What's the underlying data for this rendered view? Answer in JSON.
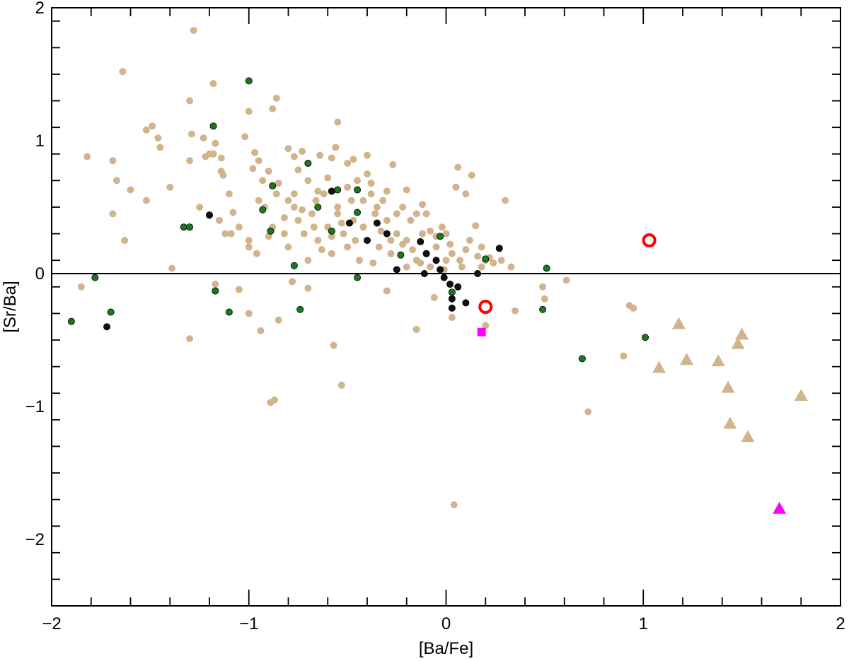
{
  "chart_data": {
    "type": "scatter",
    "title": "",
    "xlabel": "[Ba/Fe]",
    "ylabel": "[Sr/Ba]",
    "xlim": [
      -2,
      2
    ],
    "ylim": [
      -2.5,
      2
    ],
    "x_major_ticks": [
      -2,
      -1,
      0,
      1,
      2
    ],
    "y_major_ticks": [
      -2,
      -1,
      0,
      1,
      2
    ],
    "x_tick_labels": [
      "−2",
      "−1",
      "0",
      "1",
      "2"
    ],
    "y_tick_labels": [
      "−2",
      "−1",
      "0",
      "1",
      "2"
    ],
    "x_minor_step": 0.2,
    "y_minor_step": 0.2,
    "reference_lines": [
      {
        "axis": "y",
        "value": 0
      }
    ],
    "grid": false,
    "legend": "none",
    "series": [
      {
        "marker": "circle",
        "color": "#d2b48c",
        "filled": true,
        "points": [
          [
            -1.28,
            1.83
          ],
          [
            -1.64,
            1.52
          ],
          [
            -1.18,
            1.43
          ],
          [
            -1.0,
            1.22
          ],
          [
            -1.3,
            1.3
          ],
          [
            -0.86,
            1.32
          ],
          [
            -0.88,
            1.24
          ],
          [
            -0.55,
            1.14
          ],
          [
            -1.52,
            1.08
          ],
          [
            -1.49,
            1.11
          ],
          [
            -1.46,
            1.02
          ],
          [
            -1.45,
            0.95
          ],
          [
            -1.29,
            1.05
          ],
          [
            -1.23,
            1.02
          ],
          [
            -1.17,
            0.98
          ],
          [
            -1.02,
            1.03
          ],
          [
            -1.3,
            0.85
          ],
          [
            -1.18,
            0.9
          ],
          [
            -1.22,
            0.88
          ],
          [
            -1.14,
            0.87
          ],
          [
            -1.14,
            0.77
          ],
          [
            -1.13,
            0.74
          ],
          [
            -0.97,
            0.91
          ],
          [
            -0.95,
            0.85
          ],
          [
            -0.98,
            0.79
          ],
          [
            -0.9,
            0.77
          ],
          [
            -0.93,
            0.7
          ],
          [
            -0.8,
            0.94
          ],
          [
            -0.77,
            0.88
          ],
          [
            -0.73,
            0.92
          ],
          [
            -0.64,
            0.89
          ],
          [
            -0.58,
            0.87
          ],
          [
            -0.56,
            0.95
          ],
          [
            -0.5,
            0.83
          ],
          [
            -0.47,
            0.86
          ],
          [
            -0.4,
            0.89
          ],
          [
            -0.27,
            0.82
          ],
          [
            -1.82,
            0.88
          ],
          [
            -1.69,
            0.85
          ],
          [
            -1.67,
            0.7
          ],
          [
            -1.6,
            0.63
          ],
          [
            -1.52,
            0.55
          ],
          [
            -1.69,
            0.45
          ],
          [
            -1.63,
            0.25
          ],
          [
            -1.39,
            0.04
          ],
          [
            -1.08,
            0.46
          ],
          [
            -1.15,
            0.4
          ],
          [
            -1.09,
            0.3
          ],
          [
            -1.0,
            0.25
          ],
          [
            -1.0,
            0.2
          ],
          [
            -0.95,
            0.55
          ],
          [
            -0.92,
            0.5
          ],
          [
            -0.86,
            0.6
          ],
          [
            -0.82,
            0.3
          ],
          [
            -0.8,
            0.2
          ],
          [
            -0.77,
            0.5
          ],
          [
            -0.75,
            0.4
          ],
          [
            -0.72,
            0.3
          ],
          [
            -0.7,
            0.1
          ],
          [
            -0.68,
            0.45
          ],
          [
            -0.66,
            0.55
          ],
          [
            -0.65,
            0.25
          ],
          [
            -0.62,
            0.6
          ],
          [
            -0.6,
            0.35
          ],
          [
            -0.58,
            0.15
          ],
          [
            -0.55,
            0.45
          ],
          [
            -0.52,
            0.3
          ],
          [
            -0.5,
            0.2
          ],
          [
            -0.48,
            0.55
          ],
          [
            -0.46,
            0.25
          ],
          [
            -0.44,
            0.1
          ],
          [
            -0.42,
            0.35
          ],
          [
            -0.4,
            0.75
          ],
          [
            -0.38,
            0.6
          ],
          [
            -0.36,
            0.45
          ],
          [
            -0.34,
            0.2
          ],
          [
            -0.32,
            0.55
          ],
          [
            -0.3,
            0.4
          ],
          [
            -0.28,
            0.15
          ],
          [
            -0.25,
            0.3
          ],
          [
            -0.22,
            0.5
          ],
          [
            -0.2,
            0.25
          ],
          [
            -0.18,
            0.4
          ],
          [
            -0.15,
            0.1
          ],
          [
            -0.12,
            0.3
          ],
          [
            -0.1,
            0.45
          ],
          [
            -0.08,
            0.05
          ],
          [
            -0.05,
            0.2
          ],
          [
            -0.02,
            0.35
          ],
          [
            0.0,
            0.1
          ],
          [
            0.03,
            0.15
          ],
          [
            0.05,
            0.65
          ],
          [
            0.06,
            0.8
          ],
          [
            0.08,
            0.05
          ],
          [
            0.1,
            0.6
          ],
          [
            0.13,
            0.74
          ],
          [
            0.15,
            0.36
          ],
          [
            0.18,
            0.05
          ],
          [
            0.2,
            0.1
          ],
          [
            0.22,
            0.12
          ],
          [
            0.3,
            0.55
          ],
          [
            0.33,
            0.05
          ],
          [
            0.35,
            -0.28
          ],
          [
            0.49,
            -0.1
          ],
          [
            0.5,
            -0.19
          ],
          [
            0.61,
            -0.05
          ],
          [
            0.72,
            -1.04
          ],
          [
            0.9,
            -0.62
          ],
          [
            0.93,
            -0.24
          ],
          [
            0.95,
            -0.26
          ],
          [
            -1.85,
            -0.1
          ],
          [
            -1.3,
            -0.49
          ],
          [
            -1.17,
            -0.08
          ],
          [
            -1.05,
            -0.12
          ],
          [
            -1.0,
            -0.3
          ],
          [
            -0.94,
            -0.43
          ],
          [
            -0.89,
            -0.97
          ],
          [
            -0.87,
            -0.95
          ],
          [
            -0.85,
            -0.35
          ],
          [
            -0.78,
            -0.06
          ],
          [
            -0.7,
            -0.11
          ],
          [
            -0.57,
            -0.54
          ],
          [
            -0.53,
            -0.84
          ],
          [
            -0.3,
            -0.13
          ],
          [
            -0.15,
            -0.42
          ],
          [
            0.04,
            -1.74
          ],
          [
            0.2,
            -0.39
          ],
          [
            0.03,
            -0.33
          ],
          [
            -0.06,
            -0.18
          ],
          [
            -0.65,
            0.62
          ],
          [
            -0.7,
            0.7
          ],
          [
            -0.75,
            0.78
          ],
          [
            -0.85,
            0.68
          ],
          [
            -0.8,
            0.55
          ],
          [
            -0.6,
            0.72
          ],
          [
            -0.55,
            0.5
          ],
          [
            -0.5,
            0.65
          ],
          [
            -0.45,
            0.7
          ],
          [
            -0.42,
            0.55
          ],
          [
            -0.38,
            0.68
          ],
          [
            -0.35,
            0.5
          ],
          [
            -0.3,
            0.62
          ],
          [
            -0.25,
            0.45
          ],
          [
            -0.2,
            0.63
          ],
          [
            -0.15,
            0.45
          ],
          [
            -0.12,
            0.52
          ],
          [
            -0.08,
            0.32
          ],
          [
            -0.05,
            0.28
          ],
          [
            -0.22,
            0.22
          ],
          [
            -0.17,
            0.18
          ],
          [
            -0.1,
            0.15
          ],
          [
            -0.28,
            0.25
          ],
          [
            -0.33,
            0.32
          ],
          [
            -0.37,
            0.08
          ],
          [
            -0.47,
            0.4
          ],
          [
            -0.53,
            0.38
          ],
          [
            -0.58,
            0.28
          ],
          [
            -0.63,
            0.18
          ],
          [
            -0.67,
            0.35
          ],
          [
            -0.73,
            0.48
          ],
          [
            -0.77,
            0.6
          ],
          [
            -0.82,
            0.42
          ],
          [
            -0.88,
            0.35
          ],
          [
            -0.9,
            0.28
          ],
          [
            -0.96,
            0.15
          ],
          [
            -1.05,
            0.35
          ],
          [
            -1.1,
            0.6
          ],
          [
            -1.12,
            0.3
          ],
          [
            -1.2,
            0.9
          ],
          [
            -1.25,
            0.5
          ],
          [
            -1.4,
            0.65
          ],
          [
            0.0,
            0.3
          ],
          [
            0.02,
            0.22
          ],
          [
            0.1,
            0.18
          ],
          [
            0.12,
            0.25
          ],
          [
            0.16,
            0.13
          ],
          [
            0.18,
            0.2
          ],
          [
            0.24,
            0.08
          ],
          [
            0.28,
            0.1
          ],
          [
            -0.01,
            0.03
          ],
          [
            0.07,
            0.1
          ],
          [
            -0.13,
            0.08
          ],
          [
            -0.2,
            0.05
          ]
        ]
      },
      {
        "marker": "triangle",
        "color": "#d2b48c",
        "filled": true,
        "points": [
          [
            1.08,
            -0.71
          ],
          [
            1.18,
            -0.38
          ],
          [
            1.22,
            -0.65
          ],
          [
            1.38,
            -0.66
          ],
          [
            1.43,
            -0.86
          ],
          [
            1.44,
            -1.13
          ],
          [
            1.48,
            -0.53
          ],
          [
            1.5,
            -0.46
          ],
          [
            1.53,
            -1.23
          ],
          [
            1.8,
            -0.92
          ]
        ]
      },
      {
        "marker": "circle",
        "color": "#1a7a1a",
        "filled": true,
        "points": [
          [
            -1.0,
            1.45
          ],
          [
            -1.18,
            1.11
          ],
          [
            -0.7,
            0.83
          ],
          [
            -0.88,
            0.66
          ],
          [
            -0.55,
            0.63
          ],
          [
            -0.45,
            0.63
          ],
          [
            -0.65,
            0.5
          ],
          [
            -0.93,
            0.48
          ],
          [
            -1.33,
            0.35
          ],
          [
            -1.3,
            0.35
          ],
          [
            -0.45,
            0.46
          ],
          [
            -0.89,
            0.32
          ],
          [
            -0.58,
            0.32
          ],
          [
            -0.03,
            0.28
          ],
          [
            -0.23,
            0.14
          ],
          [
            0.2,
            0.11
          ],
          [
            0.51,
            0.04
          ],
          [
            -0.77,
            0.06
          ],
          [
            -1.78,
            -0.03
          ],
          [
            -0.45,
            -0.03
          ],
          [
            -1.17,
            -0.13
          ],
          [
            0.03,
            -0.14
          ],
          [
            -1.1,
            -0.29
          ],
          [
            -0.74,
            -0.27
          ],
          [
            -1.7,
            -0.29
          ],
          [
            0.49,
            -0.27
          ],
          [
            -1.9,
            -0.36
          ],
          [
            1.01,
            -0.48
          ],
          [
            0.69,
            -0.64
          ]
        ]
      },
      {
        "marker": "circle",
        "color": "#111111",
        "filled": true,
        "points": [
          [
            -0.58,
            0.62
          ],
          [
            -1.2,
            0.44
          ],
          [
            -0.49,
            0.38
          ],
          [
            -0.35,
            0.38
          ],
          [
            -0.3,
            0.3
          ],
          [
            -0.4,
            0.25
          ],
          [
            -0.13,
            0.24
          ],
          [
            0.27,
            0.19
          ],
          [
            -0.1,
            0.15
          ],
          [
            -0.05,
            0.1
          ],
          [
            -0.25,
            0.03
          ],
          [
            -0.03,
            0.03
          ],
          [
            -0.11,
            0.0
          ],
          [
            0.16,
            0.0
          ],
          [
            -0.01,
            -0.03
          ],
          [
            0.02,
            -0.08
          ],
          [
            0.06,
            -0.1
          ],
          [
            0.03,
            -0.19
          ],
          [
            0.1,
            -0.22
          ],
          [
            0.03,
            -0.26
          ],
          [
            -1.72,
            -0.4
          ]
        ]
      },
      {
        "marker": "circle",
        "color": "#ff0000",
        "filled": false,
        "points": [
          [
            1.03,
            0.25
          ],
          [
            0.2,
            -0.25
          ]
        ]
      },
      {
        "marker": "square",
        "color": "#ff00ff",
        "filled": true,
        "points": [
          [
            0.18,
            -0.44
          ]
        ]
      },
      {
        "marker": "triangle",
        "color": "#ff00ff",
        "filled": true,
        "points": [
          [
            1.69,
            -1.77
          ]
        ]
      }
    ]
  }
}
